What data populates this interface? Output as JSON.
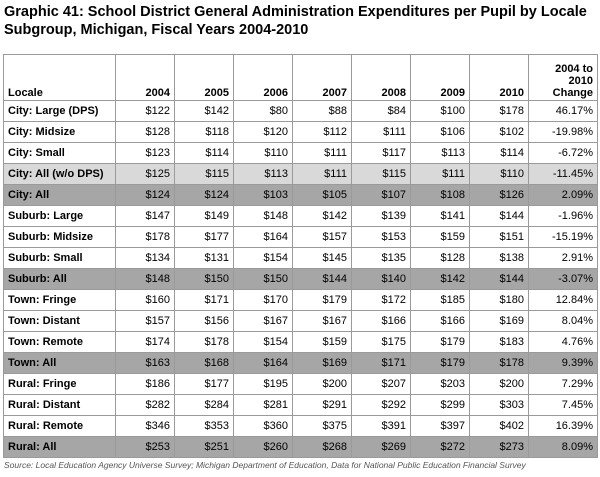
{
  "title": "Graphic 41: School District General Administration Expenditures per Pupil by Locale Subgroup, Michigan, Fiscal Years 2004-2010",
  "columns": [
    "Locale",
    "2004",
    "2005",
    "2006",
    "2007",
    "2008",
    "2009",
    "2010",
    "2004 to 2010 Change"
  ],
  "rows": [
    {
      "style": "",
      "cells": [
        "City: Large (DPS)",
        "$122",
        "$142",
        "$80",
        "$88",
        "$84",
        "$100",
        "$178",
        "46.17%"
      ]
    },
    {
      "style": "",
      "cells": [
        "City: Midsize",
        "$128",
        "$118",
        "$120",
        "$112",
        "$111",
        "$106",
        "$102",
        "-19.98%"
      ]
    },
    {
      "style": "",
      "cells": [
        "City: Small",
        "$123",
        "$114",
        "$110",
        "$111",
        "$117",
        "$113",
        "$114",
        "-6.72%"
      ]
    },
    {
      "style": "light",
      "cells": [
        "City: All (w/o DPS)",
        "$125",
        "$115",
        "$113",
        "$111",
        "$115",
        "$111",
        "$110",
        "-11.45%"
      ]
    },
    {
      "style": "dark",
      "cells": [
        "City: All",
        "$124",
        "$124",
        "$103",
        "$105",
        "$107",
        "$108",
        "$126",
        "2.09%"
      ]
    },
    {
      "style": "",
      "cells": [
        "Suburb: Large",
        "$147",
        "$149",
        "$148",
        "$142",
        "$139",
        "$141",
        "$144",
        "-1.96%"
      ]
    },
    {
      "style": "",
      "cells": [
        "Suburb: Midsize",
        "$178",
        "$177",
        "$164",
        "$157",
        "$153",
        "$159",
        "$151",
        "-15.19%"
      ]
    },
    {
      "style": "",
      "cells": [
        "Suburb: Small",
        "$134",
        "$131",
        "$154",
        "$145",
        "$135",
        "$128",
        "$138",
        "2.91%"
      ]
    },
    {
      "style": "dark",
      "cells": [
        "Suburb: All",
        "$148",
        "$150",
        "$150",
        "$144",
        "$140",
        "$142",
        "$144",
        "-3.07%"
      ]
    },
    {
      "style": "",
      "cells": [
        "Town: Fringe",
        "$160",
        "$171",
        "$170",
        "$179",
        "$172",
        "$185",
        "$180",
        "12.84%"
      ]
    },
    {
      "style": "",
      "cells": [
        "Town: Distant",
        "$157",
        "$156",
        "$167",
        "$167",
        "$166",
        "$166",
        "$169",
        "8.04%"
      ]
    },
    {
      "style": "",
      "cells": [
        "Town: Remote",
        "$174",
        "$178",
        "$154",
        "$159",
        "$175",
        "$179",
        "$183",
        "4.76%"
      ]
    },
    {
      "style": "dark",
      "cells": [
        "Town: All",
        "$163",
        "$168",
        "$164",
        "$169",
        "$171",
        "$179",
        "$178",
        "9.39%"
      ]
    },
    {
      "style": "",
      "cells": [
        "Rural: Fringe",
        "$186",
        "$177",
        "$195",
        "$200",
        "$207",
        "$203",
        "$200",
        "7.29%"
      ]
    },
    {
      "style": "",
      "cells": [
        "Rural: Distant",
        "$282",
        "$284",
        "$281",
        "$291",
        "$292",
        "$299",
        "$303",
        "7.45%"
      ]
    },
    {
      "style": "",
      "cells": [
        "Rural: Remote",
        "$346",
        "$353",
        "$360",
        "$375",
        "$391",
        "$397",
        "$402",
        "16.39%"
      ]
    },
    {
      "style": "dark",
      "cells": [
        "Rural: All",
        "$253",
        "$251",
        "$260",
        "$268",
        "$269",
        "$272",
        "$273",
        "8.09%"
      ]
    }
  ],
  "source": "Source: Local Education Agency Universe Survey; Michigan Department of Education, Data for National Public Education Financial Survey",
  "colors": {
    "subtotal_light": "#d9d9d9",
    "subtotal_dark": "#a6a6a6",
    "border": "#9a9a9a"
  }
}
